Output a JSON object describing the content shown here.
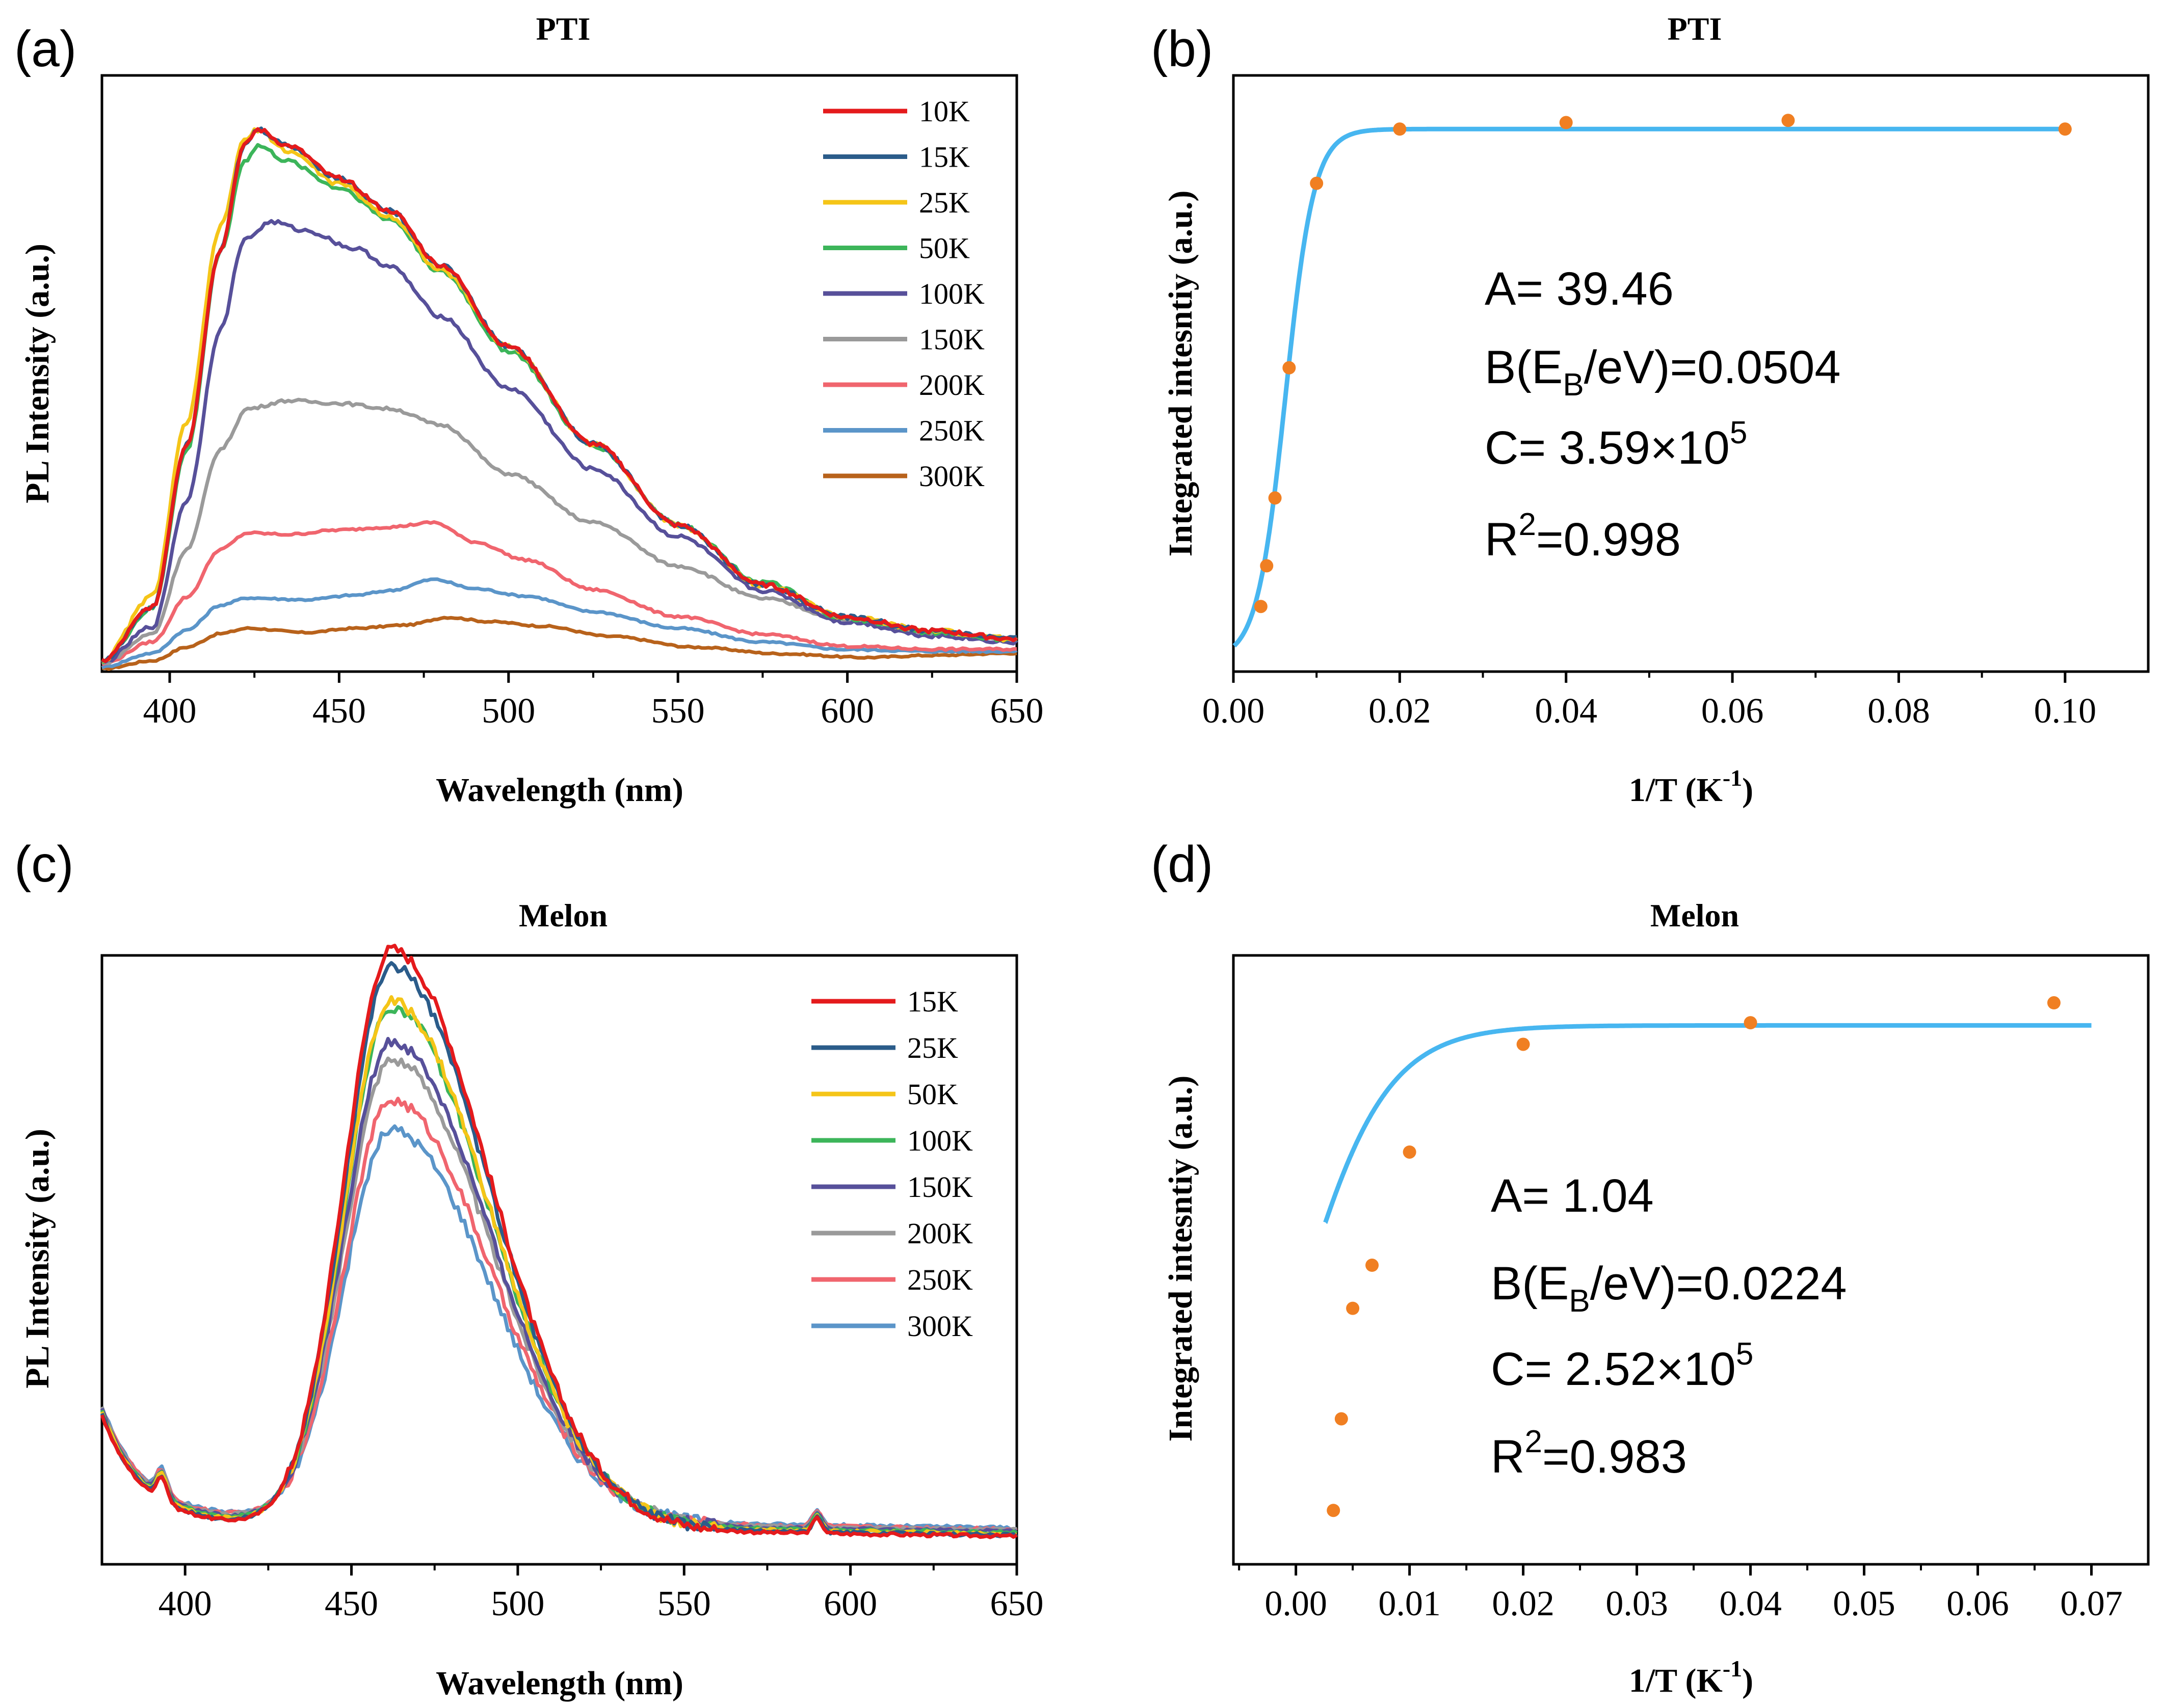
{
  "chart_data": [
    {
      "panel": "(a)",
      "type": "line",
      "title": "PTI",
      "xlabel": "Wavelength (nm)",
      "ylabel": "PL Intensity (a.u.)",
      "xlim": [
        380,
        650
      ],
      "xticks": [
        400,
        450,
        500,
        550,
        600,
        650
      ],
      "yticks": [],
      "ylim": [
        0,
        1.1
      ],
      "legend": "top-right",
      "series": [
        {
          "name": "10K",
          "color": "#e41a1c",
          "peak": 1.0,
          "shape": [
            [
              380,
              0.02
            ],
            [
              395,
              0.12
            ],
            [
              405,
              0.42
            ],
            [
              415,
              0.78
            ],
            [
              422,
              0.97
            ],
            [
              426,
              1.0
            ],
            [
              435,
              0.97
            ],
            [
              450,
              0.91
            ],
            [
              465,
              0.85
            ],
            [
              480,
              0.75
            ],
            [
              500,
              0.6
            ],
            [
              525,
              0.42
            ],
            [
              550,
              0.27
            ],
            [
              575,
              0.16
            ],
            [
              600,
              0.1
            ],
            [
              625,
              0.075
            ],
            [
              650,
              0.06
            ]
          ]
        },
        {
          "name": "15K",
          "color": "#2b5c8a",
          "peak": 1.0,
          "shape": [
            [
              380,
              0.02
            ],
            [
              395,
              0.12
            ],
            [
              405,
              0.42
            ],
            [
              415,
              0.78
            ],
            [
              422,
              0.97
            ],
            [
              426,
              1.0
            ],
            [
              435,
              0.97
            ],
            [
              450,
              0.91
            ],
            [
              465,
              0.85
            ],
            [
              480,
              0.75
            ],
            [
              500,
              0.6
            ],
            [
              525,
              0.42
            ],
            [
              550,
              0.27
            ],
            [
              575,
              0.16
            ],
            [
              600,
              0.1
            ],
            [
              625,
              0.075
            ],
            [
              650,
              0.06
            ]
          ]
        },
        {
          "name": "25K",
          "color": "#f5c518",
          "peak": 1.0,
          "shape": [
            [
              380,
              0.02
            ],
            [
              395,
              0.14
            ],
            [
              405,
              0.46
            ],
            [
              415,
              0.82
            ],
            [
              422,
              0.98
            ],
            [
              426,
              1.0
            ],
            [
              435,
              0.96
            ],
            [
              450,
              0.9
            ],
            [
              465,
              0.84
            ],
            [
              480,
              0.74
            ],
            [
              500,
              0.6
            ],
            [
              525,
              0.42
            ],
            [
              550,
              0.27
            ],
            [
              575,
              0.16
            ],
            [
              600,
              0.1
            ],
            [
              625,
              0.075
            ],
            [
              650,
              0.06
            ]
          ]
        },
        {
          "name": "50K",
          "color": "#3cb55a",
          "peak": 0.97,
          "shape": [
            [
              380,
              0.02
            ],
            [
              395,
              0.12
            ],
            [
              405,
              0.42
            ],
            [
              415,
              0.8
            ],
            [
              422,
              0.97
            ],
            [
              426,
              1.0
            ],
            [
              435,
              0.97
            ],
            [
              450,
              0.92
            ],
            [
              465,
              0.86
            ],
            [
              480,
              0.76
            ],
            [
              500,
              0.61
            ],
            [
              525,
              0.43
            ],
            [
              550,
              0.28
            ],
            [
              575,
              0.17
            ],
            [
              600,
              0.1
            ],
            [
              625,
              0.075
            ],
            [
              650,
              0.06
            ]
          ]
        },
        {
          "name": "100K",
          "color": "#57509a",
          "peak": 0.83,
          "shape": [
            [
              380,
              0.02
            ],
            [
              395,
              0.1
            ],
            [
              405,
              0.38
            ],
            [
              415,
              0.76
            ],
            [
              422,
              0.96
            ],
            [
              430,
              1.0
            ],
            [
              440,
              0.98
            ],
            [
              455,
              0.94
            ],
            [
              465,
              0.9
            ],
            [
              480,
              0.79
            ],
            [
              500,
              0.63
            ],
            [
              525,
              0.45
            ],
            [
              550,
              0.3
            ],
            [
              575,
              0.18
            ],
            [
              600,
              0.11
            ],
            [
              625,
              0.08
            ],
            [
              650,
              0.065
            ]
          ]
        },
        {
          "name": "150K",
          "color": "#9a9a9a",
          "peak": 0.5,
          "shape": [
            [
              380,
              0.03
            ],
            [
              395,
              0.14
            ],
            [
              405,
              0.45
            ],
            [
              415,
              0.82
            ],
            [
              423,
              0.97
            ],
            [
              435,
              1.0
            ],
            [
              450,
              0.99
            ],
            [
              465,
              0.97
            ],
            [
              480,
              0.91
            ],
            [
              500,
              0.73
            ],
            [
              525,
              0.55
            ],
            [
              550,
              0.39
            ],
            [
              575,
              0.27
            ],
            [
              600,
              0.19
            ],
            [
              625,
              0.14
            ],
            [
              650,
              0.12
            ]
          ]
        },
        {
          "name": "200K",
          "color": "#f0656e",
          "peak": 0.275,
          "shape": [
            [
              380,
              0.05
            ],
            [
              395,
              0.2
            ],
            [
              405,
              0.5
            ],
            [
              415,
              0.82
            ],
            [
              423,
              0.93
            ],
            [
              435,
              0.92
            ],
            [
              450,
              0.95
            ],
            [
              465,
              0.97
            ],
            [
              478,
              1.0
            ],
            [
              490,
              0.87
            ],
            [
              505,
              0.75
            ],
            [
              525,
              0.55
            ],
            [
              550,
              0.37
            ],
            [
              575,
              0.25
            ],
            [
              600,
              0.17
            ],
            [
              625,
              0.15
            ],
            [
              650,
              0.15
            ]
          ]
        },
        {
          "name": "250K",
          "color": "#5b95c9",
          "peak": 0.17,
          "shape": [
            [
              380,
              0.05
            ],
            [
              395,
              0.2
            ],
            [
              405,
              0.45
            ],
            [
              415,
              0.72
            ],
            [
              423,
              0.8
            ],
            [
              440,
              0.78
            ],
            [
              455,
              0.83
            ],
            [
              465,
              0.88
            ],
            [
              478,
              1.0
            ],
            [
              490,
              0.9
            ],
            [
              505,
              0.82
            ],
            [
              525,
              0.65
            ],
            [
              550,
              0.47
            ],
            [
              575,
              0.32
            ],
            [
              600,
              0.24
            ],
            [
              625,
              0.22
            ],
            [
              650,
              0.22
            ]
          ]
        },
        {
          "name": "300K",
          "color": "#b8621b",
          "peak": 0.1,
          "shape": [
            [
              380,
              0.05
            ],
            [
              395,
              0.2
            ],
            [
              405,
              0.45
            ],
            [
              415,
              0.7
            ],
            [
              423,
              0.8
            ],
            [
              440,
              0.72
            ],
            [
              455,
              0.8
            ],
            [
              470,
              0.86
            ],
            [
              482,
              1.0
            ],
            [
              495,
              0.92
            ],
            [
              510,
              0.84
            ],
            [
              530,
              0.65
            ],
            [
              555,
              0.45
            ],
            [
              580,
              0.33
            ],
            [
              605,
              0.26
            ],
            [
              625,
              0.3
            ],
            [
              650,
              0.34
            ]
          ]
        }
      ]
    },
    {
      "panel": "(b)",
      "type": "scatter",
      "title": "PTI",
      "xlabel": "1/T (K",
      "xlabel_sup": "-1",
      "xlabel_end": ")",
      "ylabel": "Integrated intesntiy (a.u.)",
      "xlim": [
        0.0,
        0.11
      ],
      "ylim": [
        0,
        1.0
      ],
      "xticks": [
        0.0,
        0.02,
        0.04,
        0.06,
        0.08,
        0.1
      ],
      "xtick_labels": [
        "0.00",
        "0.02",
        "0.04",
        "0.06",
        "0.08",
        "0.10"
      ],
      "points": {
        "x": [
          0.0033,
          0.004,
          0.005,
          0.0067,
          0.01,
          0.02,
          0.04,
          0.0667,
          0.1
        ],
        "y": [
          0.12,
          0.195,
          0.32,
          0.56,
          0.9,
          1.0,
          1.012,
          1.016,
          1.0
        ]
      },
      "point_color": "#f07f22",
      "fit": {
        "color": "#47b6f0",
        "A": 39.46,
        "EB": 0.0504,
        "C": 359000,
        "x_end": 0.1
      },
      "annotations": {
        "A": "A= 39.46",
        "B_pre": "B(E",
        "B_sub": "B",
        "B_post": "/eV)=0.0504",
        "C_pre": "C= 3.59×10",
        "C_sup": "5",
        "R_pre": "R",
        "R_sup": "2",
        "R_post": "=0.998"
      }
    },
    {
      "panel": "(c)",
      "type": "line",
      "title": "Melon",
      "xlabel": "Wavelength (nm)",
      "ylabel": "PL Intensity (a.u.)",
      "xlim": [
        375,
        650
      ],
      "xticks": [
        400,
        450,
        500,
        550,
        600,
        650
      ],
      "yticks": [],
      "ylim": [
        0,
        1.0
      ],
      "legend": "top-right",
      "series": [
        {
          "name": "15K",
          "color": "#e41a1c",
          "peak": 0.95
        },
        {
          "name": "25K",
          "color": "#2b5c8a",
          "peak": 0.92
        },
        {
          "name": "50K",
          "color": "#f5c518",
          "peak": 0.86
        },
        {
          "name": "100K",
          "color": "#3cb55a",
          "peak": 0.85
        },
        {
          "name": "150K",
          "color": "#57509a",
          "peak": 0.79
        },
        {
          "name": "200K",
          "color": "#9a9a9a",
          "peak": 0.76
        },
        {
          "name": "250K",
          "color": "#f0656e",
          "peak": 0.69
        },
        {
          "name": "300K",
          "color": "#5b95c9",
          "peak": 0.64
        }
      ]
    },
    {
      "panel": "(d)",
      "type": "scatter",
      "title": "Melon",
      "xlabel": "1/T (K",
      "xlabel_sup": "-1",
      "xlabel_end": ")",
      "ylabel": "Integrated intesntiy (a.u.)",
      "xlim": [
        -0.0055,
        0.075
      ],
      "ylim": [
        0,
        1.0
      ],
      "xticks": [
        0.0,
        0.01,
        0.02,
        0.03,
        0.04,
        0.05,
        0.06,
        0.07
      ],
      "xtick_labels": [
        "0.00",
        "0.01",
        "0.02",
        "0.03",
        "0.04",
        "0.05",
        "0.06",
        "0.07"
      ],
      "points": {
        "x": [
          0.0033,
          0.004,
          0.005,
          0.0067,
          0.01,
          0.02,
          0.04,
          0.0667
        ],
        "y": [
          0.1,
          0.27,
          0.475,
          0.555,
          0.765,
          0.965,
          1.005,
          1.042
        ]
      },
      "point_color": "#f07f22",
      "fit": {
        "color": "#47b6f0",
        "A": 1.04,
        "EB": 0.0224,
        "C": 252000,
        "x_end": 0.07
      },
      "annotations": {
        "A": "A= 1.04",
        "B_pre": "B(E",
        "B_sub": "B",
        "B_post": "/eV)=0.0224",
        "C_pre": "C= 2.52×10",
        "C_sup": "5",
        "R_pre": "R",
        "R_sup": "2",
        "R_post": "=0.983"
      }
    }
  ]
}
